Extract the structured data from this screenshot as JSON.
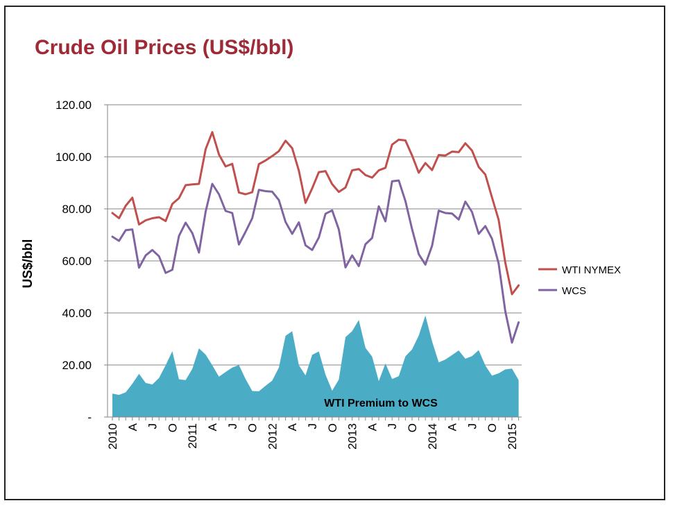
{
  "chart_data": {
    "type": "line",
    "title": "Crude Oil Prices (US$/bbl)",
    "ylabel": "US$/bbl",
    "ylim": [
      0,
      120
    ],
    "y_ticks": [
      "-",
      "20.00",
      "40.00",
      "60.00",
      "80.00",
      "100.00",
      "120.00"
    ],
    "x_tick_labels": [
      "2010",
      "A",
      "J",
      "O",
      "2011",
      "A",
      "J",
      "O",
      "2012",
      "A",
      "J",
      "O",
      "2013",
      "A",
      "J",
      "O",
      "2014",
      "A",
      "J",
      "O",
      "2015"
    ],
    "grid": true,
    "legend_position": "right",
    "area_label": "WTI Premium to WCS",
    "x": [
      "2010-01",
      "2010-02",
      "2010-03",
      "2010-04",
      "2010-05",
      "2010-06",
      "2010-07",
      "2010-08",
      "2010-09",
      "2010-10",
      "2010-11",
      "2010-12",
      "2011-01",
      "2011-02",
      "2011-03",
      "2011-04",
      "2011-05",
      "2011-06",
      "2011-07",
      "2011-08",
      "2011-09",
      "2011-10",
      "2011-11",
      "2011-12",
      "2012-01",
      "2012-02",
      "2012-03",
      "2012-04",
      "2012-05",
      "2012-06",
      "2012-07",
      "2012-08",
      "2012-09",
      "2012-10",
      "2012-11",
      "2012-12",
      "2013-01",
      "2013-02",
      "2013-03",
      "2013-04",
      "2013-05",
      "2013-06",
      "2013-07",
      "2013-08",
      "2013-09",
      "2013-10",
      "2013-11",
      "2013-12",
      "2014-01",
      "2014-02",
      "2014-03",
      "2014-04",
      "2014-05",
      "2014-06",
      "2014-07",
      "2014-08",
      "2014-09",
      "2014-10",
      "2014-11",
      "2014-12",
      "2015-01",
      "2015-02"
    ],
    "series": [
      {
        "name": "WTI NYMEX",
        "type": "line",
        "color": "#c0504d",
        "values": [
          78.4,
          76.4,
          81.2,
          84.3,
          74.0,
          75.6,
          76.4,
          76.8,
          75.3,
          81.9,
          84.1,
          89.1,
          89.4,
          89.6,
          102.9,
          109.5,
          100.9,
          96.3,
          97.3,
          86.3,
          85.6,
          86.4,
          97.2,
          98.6,
          100.3,
          102.2,
          106.2,
          103.3,
          94.7,
          82.3,
          87.9,
          94.1,
          94.5,
          89.5,
          86.5,
          88.2,
          94.8,
          95.3,
          93.0,
          92.0,
          94.8,
          95.8,
          104.7,
          106.6,
          106.3,
          100.5,
          93.9,
          97.6,
          94.9,
          100.7,
          100.5,
          102.0,
          101.8,
          105.2,
          102.4,
          96.1,
          93.2,
          84.4,
          75.8,
          59.3,
          47.2,
          50.6
        ]
      },
      {
        "name": "WCS",
        "type": "line",
        "color": "#8064a2",
        "values": [
          69.3,
          67.7,
          71.8,
          72.1,
          57.4,
          62.1,
          64.2,
          61.8,
          55.4,
          56.6,
          69.6,
          74.7,
          70.7,
          63.2,
          78.9,
          89.6,
          85.6,
          79.2,
          78.4,
          66.3,
          71.2,
          76.4,
          87.3,
          86.8,
          86.6,
          83.4,
          75.0,
          70.4,
          74.8,
          66.0,
          64.2,
          69.0,
          78.1,
          79.4,
          72.1,
          57.5,
          62.1,
          58.0,
          66.4,
          68.8,
          81.0,
          75.2,
          90.6,
          90.9,
          83.0,
          72.2,
          62.6,
          58.6,
          65.8,
          79.3,
          78.4,
          78.2,
          75.9,
          82.8,
          78.8,
          70.4,
          73.4,
          68.5,
          59.0,
          40.6,
          28.6,
          36.4
        ]
      },
      {
        "name": "WTI Premium to WCS",
        "type": "area",
        "color": "#4bacc6",
        "values": [
          9.0,
          8.5,
          9.5,
          12.8,
          16.6,
          13.1,
          12.5,
          15.0,
          19.9,
          25.3,
          14.5,
          14.2,
          18.5,
          26.4,
          24.0,
          19.9,
          15.5,
          17.3,
          19.0,
          20.0,
          14.6,
          10.0,
          9.9,
          12.0,
          14.0,
          19.0,
          31.2,
          33.0,
          19.9,
          16.0,
          23.9,
          25.2,
          16.3,
          10.1,
          14.4,
          30.7,
          33.0,
          37.3,
          26.6,
          23.2,
          13.8,
          20.6,
          14.6,
          15.7,
          23.3,
          26.0,
          31.3,
          39.0,
          29.1,
          21.0,
          22.1,
          23.8,
          25.6,
          22.4,
          23.4,
          25.7,
          19.8,
          15.9,
          16.8,
          18.3,
          18.6,
          14.2
        ]
      }
    ]
  }
}
